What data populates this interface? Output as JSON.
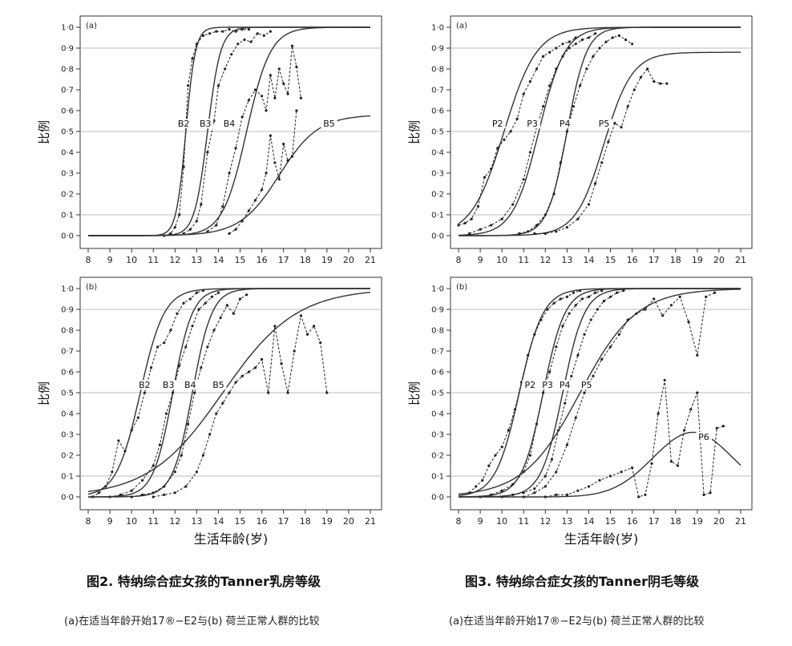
{
  "figures": [
    {
      "title": "图2. 特纳综合症女孩的Tanner乳房等级",
      "subtitle": "(a)在适当年龄开始17®−E2与(b) 荷兰正常人群的比较"
    },
    {
      "title": "图3. 特纳综合症女孩的Tanner阴毛等级",
      "subtitle": "(a)在适当年龄开始17®−E2与(b) 荷兰正常人群的比较"
    }
  ],
  "colors": {
    "curve": "#333333",
    "grid": "#bbbbbb",
    "axis": "#333333"
  },
  "chart_data": [
    {
      "type": "line",
      "panel": "(a)",
      "ylabel": "比例",
      "xlabel": "",
      "xlim": [
        8,
        21
      ],
      "ylim": [
        0,
        1
      ],
      "xticks": [
        "8",
        "9",
        "10",
        "11",
        "12",
        "13",
        "14",
        "15",
        "16",
        "17",
        "18",
        "19",
        "20",
        "21"
      ],
      "yticks": [
        "0·0",
        "0·1",
        "0·2",
        "0·3",
        "0·4",
        "0·5",
        "0·6",
        "0·7",
        "0·8",
        "0·9",
        "1·0"
      ],
      "hlines": [
        0.1,
        0.5,
        0.9
      ],
      "series": [
        {
          "name": "B2",
          "label_at": [
            12.4,
            0.53
          ],
          "fit": {
            "mid": 12.5,
            "scale": 0.22,
            "max": 1.0
          },
          "observed_x": [
            11.5,
            11.8,
            12.0,
            12.2,
            12.4,
            12.6,
            12.8,
            13.0,
            13.3,
            13.6,
            13.9,
            14.2,
            14.5,
            14.8,
            15.1,
            15.4
          ],
          "observed_y": [
            0.0,
            0.01,
            0.04,
            0.1,
            0.33,
            0.72,
            0.85,
            0.92,
            0.96,
            0.97,
            0.98,
            0.98,
            0.99,
            0.98,
            0.99,
            0.99
          ]
        },
        {
          "name": "B3",
          "label_at": [
            13.4,
            0.53
          ],
          "fit": {
            "mid": 13.5,
            "scale": 0.3,
            "max": 1.0
          },
          "observed_x": [
            12.4,
            12.7,
            13.0,
            13.2,
            13.5,
            13.8,
            14.0,
            14.3,
            14.6,
            14.9,
            15.2,
            15.5,
            15.8,
            16.1,
            16.4
          ],
          "observed_y": [
            0.01,
            0.03,
            0.07,
            0.15,
            0.4,
            0.55,
            0.72,
            0.8,
            0.87,
            0.92,
            0.94,
            0.93,
            0.97,
            0.96,
            0.98
          ]
        },
        {
          "name": "B4",
          "label_at": [
            14.5,
            0.53
          ],
          "fit": {
            "mid": 15.3,
            "scale": 0.55,
            "max": 1.0
          },
          "observed_x": [
            13.5,
            13.9,
            14.2,
            14.5,
            14.8,
            15.1,
            15.4,
            15.7,
            16.0,
            16.2,
            16.4,
            16.6,
            16.8,
            17.0,
            17.2,
            17.4,
            17.6,
            17.8
          ],
          "observed_y": [
            0.02,
            0.05,
            0.14,
            0.3,
            0.42,
            0.57,
            0.65,
            0.7,
            0.67,
            0.6,
            0.77,
            0.66,
            0.8,
            0.73,
            0.68,
            0.91,
            0.81,
            0.66
          ]
        },
        {
          "name": "B5",
          "label_at": [
            19.1,
            0.53
          ],
          "fit": {
            "mid": 16.8,
            "scale": 0.9,
            "max": 0.58
          },
          "observed_x": [
            14.5,
            14.8,
            15.1,
            15.4,
            15.7,
            16.0,
            16.2,
            16.4,
            16.6,
            16.8,
            17.0,
            17.2,
            17.4,
            17.6
          ],
          "observed_y": [
            0.01,
            0.03,
            0.07,
            0.12,
            0.17,
            0.22,
            0.3,
            0.48,
            0.35,
            0.27,
            0.44,
            0.36,
            0.38,
            0.6
          ]
        }
      ]
    },
    {
      "type": "line",
      "panel": "(a)",
      "ylabel": "比例",
      "xlabel": "",
      "xlim": [
        8,
        21
      ],
      "ylim": [
        0,
        1
      ],
      "xticks": [
        "8",
        "9",
        "10",
        "11",
        "12",
        "13",
        "14",
        "15",
        "16",
        "17",
        "18",
        "19",
        "20",
        "21"
      ],
      "yticks": [
        "0·0",
        "0·1",
        "0·2",
        "0·3",
        "0·4",
        "0·5",
        "0·6",
        "0·7",
        "0·8",
        "0·9",
        "1·0"
      ],
      "hlines": [
        0.1,
        0.5,
        0.9
      ],
      "series": [
        {
          "name": "P2",
          "label_at": [
            9.8,
            0.53
          ],
          "fit": {
            "mid": 10.1,
            "scale": 0.75,
            "max": 1.0
          },
          "observed_x": [
            8.0,
            8.3,
            8.6,
            8.9,
            9.2,
            9.5,
            9.8,
            10.1,
            10.4,
            10.7,
            11.0,
            11.3,
            11.6,
            11.9,
            12.2,
            12.5,
            12.8,
            13.1,
            13.4
          ],
          "observed_y": [
            0.05,
            0.06,
            0.08,
            0.14,
            0.28,
            0.32,
            0.42,
            0.46,
            0.5,
            0.56,
            0.68,
            0.74,
            0.8,
            0.86,
            0.88,
            0.9,
            0.92,
            0.93,
            0.95
          ]
        },
        {
          "name": "P3",
          "label_at": [
            11.4,
            0.53
          ],
          "fit": {
            "mid": 11.7,
            "scale": 0.6,
            "max": 1.0
          },
          "observed_x": [
            8.5,
            9.0,
            9.5,
            10.0,
            10.5,
            11.0,
            11.3,
            11.6,
            11.9,
            12.2,
            12.5,
            12.8,
            13.1,
            13.4,
            13.7,
            14.0,
            14.3
          ],
          "observed_y": [
            0.01,
            0.03,
            0.05,
            0.08,
            0.15,
            0.27,
            0.4,
            0.52,
            0.62,
            0.72,
            0.8,
            0.86,
            0.9,
            0.92,
            0.94,
            0.95,
            0.97
          ]
        },
        {
          "name": "P4",
          "label_at": [
            12.9,
            0.53
          ],
          "fit": {
            "mid": 13.0,
            "scale": 0.45,
            "max": 1.0
          },
          "observed_x": [
            10.8,
            11.2,
            11.6,
            12.0,
            12.4,
            12.7,
            13.0,
            13.3,
            13.6,
            13.9,
            14.2,
            14.5,
            14.8,
            15.1,
            15.4,
            15.7,
            16.0
          ],
          "observed_y": [
            0.01,
            0.02,
            0.05,
            0.1,
            0.2,
            0.35,
            0.5,
            0.62,
            0.72,
            0.8,
            0.86,
            0.9,
            0.93,
            0.95,
            0.96,
            0.94,
            0.92
          ]
        },
        {
          "name": "P5",
          "label_at": [
            14.7,
            0.53
          ],
          "fit": {
            "mid": 14.7,
            "scale": 0.65,
            "max": 0.88
          },
          "observed_x": [
            11.5,
            12.0,
            12.5,
            13.0,
            13.5,
            14.0,
            14.3,
            14.6,
            14.9,
            15.2,
            15.5,
            15.8,
            16.1,
            16.4,
            16.7,
            17.0,
            17.3,
            17.6
          ],
          "observed_y": [
            0.01,
            0.01,
            0.02,
            0.04,
            0.08,
            0.15,
            0.25,
            0.35,
            0.45,
            0.54,
            0.52,
            0.62,
            0.7,
            0.76,
            0.8,
            0.74,
            0.73,
            0.73
          ]
        }
      ]
    },
    {
      "type": "line",
      "panel": "(b)",
      "ylabel": "比例",
      "xlabel": "生活年龄(岁)",
      "xlim": [
        8,
        21
      ],
      "ylim": [
        0,
        1
      ],
      "xticks": [
        "8",
        "9",
        "10",
        "11",
        "12",
        "13",
        "14",
        "15",
        "16",
        "17",
        "18",
        "19",
        "20",
        "21"
      ],
      "yticks": [
        "0·0",
        "0·1",
        "0·2",
        "0·3",
        "0·4",
        "0·5",
        "0·6",
        "0·7",
        "0·8",
        "0·9",
        "1·0"
      ],
      "hlines": [
        0.1,
        0.5,
        0.9
      ],
      "series": [
        {
          "name": "B2",
          "label_at": [
            10.6,
            0.53
          ],
          "fit": {
            "mid": 10.4,
            "scale": 0.55,
            "max": 1.0
          },
          "observed_x": [
            8.2,
            8.5,
            8.8,
            9.1,
            9.4,
            9.7,
            10.0,
            10.3,
            10.6,
            10.9,
            11.2,
            11.5,
            11.8,
            12.1,
            12.4,
            12.7,
            13.0,
            13.3
          ],
          "observed_y": [
            0.0,
            0.02,
            0.05,
            0.12,
            0.27,
            0.22,
            0.32,
            0.38,
            0.5,
            0.62,
            0.72,
            0.74,
            0.8,
            0.88,
            0.93,
            0.95,
            0.98,
            0.99
          ]
        },
        {
          "name": "B3",
          "label_at": [
            11.7,
            0.53
          ],
          "fit": {
            "mid": 11.9,
            "scale": 0.45,
            "max": 1.0
          },
          "observed_x": [
            9.0,
            9.5,
            10.0,
            10.5,
            11.0,
            11.3,
            11.6,
            11.9,
            12.2,
            12.5,
            12.8,
            13.1,
            13.4,
            13.7,
            14.0
          ],
          "observed_y": [
            0.0,
            0.01,
            0.03,
            0.08,
            0.15,
            0.25,
            0.4,
            0.5,
            0.63,
            0.72,
            0.82,
            0.9,
            0.93,
            0.96,
            0.98
          ]
        },
        {
          "name": "B4",
          "label_at": [
            12.7,
            0.53
          ],
          "fit": {
            "mid": 12.8,
            "scale": 0.45,
            "max": 1.0
          },
          "observed_x": [
            10.0,
            10.5,
            11.0,
            11.5,
            12.0,
            12.3,
            12.6,
            12.9,
            13.2,
            13.5,
            13.8,
            14.1,
            14.4,
            14.7,
            15.0,
            15.3
          ],
          "observed_y": [
            0.0,
            0.01,
            0.02,
            0.05,
            0.12,
            0.2,
            0.35,
            0.5,
            0.62,
            0.72,
            0.8,
            0.86,
            0.92,
            0.88,
            0.95,
            0.97
          ]
        },
        {
          "name": "B5",
          "label_at": [
            14.0,
            0.53
          ],
          "fit": {
            "mid": 14.2,
            "scale": 1.7,
            "max": 1.0
          },
          "observed_x": [
            11.0,
            11.5,
            12.0,
            12.5,
            13.0,
            13.3,
            13.6,
            13.9,
            14.2,
            14.5,
            14.8,
            15.1,
            15.4,
            15.7,
            16.0,
            16.3,
            16.6,
            16.9,
            17.2,
            17.5,
            17.8,
            18.1,
            18.4,
            18.7,
            19.0
          ],
          "observed_y": [
            0.0,
            0.01,
            0.02,
            0.05,
            0.12,
            0.2,
            0.3,
            0.4,
            0.45,
            0.5,
            0.55,
            0.58,
            0.6,
            0.62,
            0.66,
            0.5,
            0.82,
            0.64,
            0.5,
            0.7,
            0.87,
            0.78,
            0.82,
            0.74,
            0.5
          ]
        }
      ]
    },
    {
      "type": "line",
      "panel": "(b)",
      "ylabel": "比例",
      "xlabel": "生活年龄(岁)",
      "xlim": [
        8,
        21
      ],
      "ylim": [
        0,
        1
      ],
      "xticks": [
        "8",
        "9",
        "10",
        "11",
        "12",
        "13",
        "14",
        "15",
        "16",
        "17",
        "18",
        "19",
        "20",
        "21"
      ],
      "yticks": [
        "0·0",
        "0·1",
        "0·2",
        "0·3",
        "0·4",
        "0·5",
        "0·6",
        "0·7",
        "0·8",
        "0·9",
        "1·0"
      ],
      "hlines": [
        0.1,
        0.5,
        0.9
      ],
      "series": [
        {
          "name": "P2",
          "label_at": [
            11.3,
            0.53
          ],
          "fit": {
            "mid": 10.8,
            "scale": 0.55,
            "max": 1.0
          },
          "observed_x": [
            8.5,
            8.8,
            9.1,
            9.4,
            9.7,
            10.0,
            10.3,
            10.6,
            10.9,
            11.2,
            11.5,
            11.8,
            12.1,
            12.4,
            12.7,
            13.0,
            13.3,
            13.6
          ],
          "observed_y": [
            0.02,
            0.05,
            0.08,
            0.15,
            0.2,
            0.24,
            0.32,
            0.42,
            0.55,
            0.68,
            0.78,
            0.85,
            0.9,
            0.93,
            0.95,
            0.96,
            0.98,
            0.99
          ]
        },
        {
          "name": "P3",
          "label_at": [
            12.1,
            0.53
          ],
          "fit": {
            "mid": 11.9,
            "scale": 0.5,
            "max": 1.0
          },
          "observed_x": [
            9.0,
            9.5,
            10.0,
            10.5,
            11.0,
            11.3,
            11.6,
            11.9,
            12.2,
            12.5,
            12.8,
            13.1,
            13.4,
            13.7,
            14.0,
            14.3,
            14.6
          ],
          "observed_y": [
            0.0,
            0.01,
            0.03,
            0.06,
            0.12,
            0.2,
            0.35,
            0.5,
            0.6,
            0.72,
            0.82,
            0.88,
            0.92,
            0.95,
            0.96,
            0.98,
            0.99
          ]
        },
        {
          "name": "P4",
          "label_at": [
            12.9,
            0.53
          ],
          "fit": {
            "mid": 12.8,
            "scale": 0.5,
            "max": 1.0
          },
          "observed_x": [
            10.0,
            10.5,
            11.0,
            11.5,
            12.0,
            12.3,
            12.6,
            12.9,
            13.2,
            13.5,
            13.8,
            14.1,
            14.4,
            14.7,
            15.0,
            15.3,
            15.6
          ],
          "observed_y": [
            0.0,
            0.01,
            0.02,
            0.04,
            0.1,
            0.18,
            0.32,
            0.45,
            0.58,
            0.68,
            0.78,
            0.85,
            0.9,
            0.94,
            0.96,
            0.98,
            0.99
          ]
        },
        {
          "name": "P5",
          "label_at": [
            13.9,
            0.53
          ],
          "fit": {
            "mid": 13.6,
            "scale": 1.3,
            "max": 1.0
          },
          "observed_x": [
            11.0,
            11.5,
            12.0,
            12.5,
            13.0,
            13.4,
            13.8,
            14.2,
            14.6,
            15.0,
            15.4,
            15.8,
            16.2,
            16.6,
            17.0,
            17.4,
            17.8,
            18.2,
            18.6,
            19.0,
            19.4,
            19.8
          ],
          "observed_y": [
            0.0,
            0.02,
            0.05,
            0.12,
            0.25,
            0.38,
            0.5,
            0.58,
            0.66,
            0.72,
            0.78,
            0.85,
            0.88,
            0.9,
            0.95,
            0.87,
            0.92,
            0.96,
            0.84,
            0.68,
            0.96,
            0.98
          ]
        },
        {
          "name": "P6",
          "label_at": [
            19.3,
            0.28
          ],
          "fit": {
            "mid": 18.8,
            "scale": 0.5,
            "max": 0.31,
            "peak": true
          },
          "observed_x": [
            12.0,
            12.5,
            13.0,
            13.5,
            14.0,
            14.5,
            15.0,
            15.5,
            16.0,
            16.3,
            16.6,
            16.9,
            17.2,
            17.5,
            17.8,
            18.1,
            18.4,
            18.7,
            19.0,
            19.3,
            19.6,
            19.9,
            20.2
          ],
          "observed_y": [
            0.0,
            0.01,
            0.01,
            0.03,
            0.05,
            0.08,
            0.1,
            0.12,
            0.14,
            0.0,
            0.01,
            0.16,
            0.4,
            0.56,
            0.17,
            0.15,
            0.32,
            0.42,
            0.5,
            0.01,
            0.02,
            0.33,
            0.34
          ]
        }
      ]
    }
  ]
}
